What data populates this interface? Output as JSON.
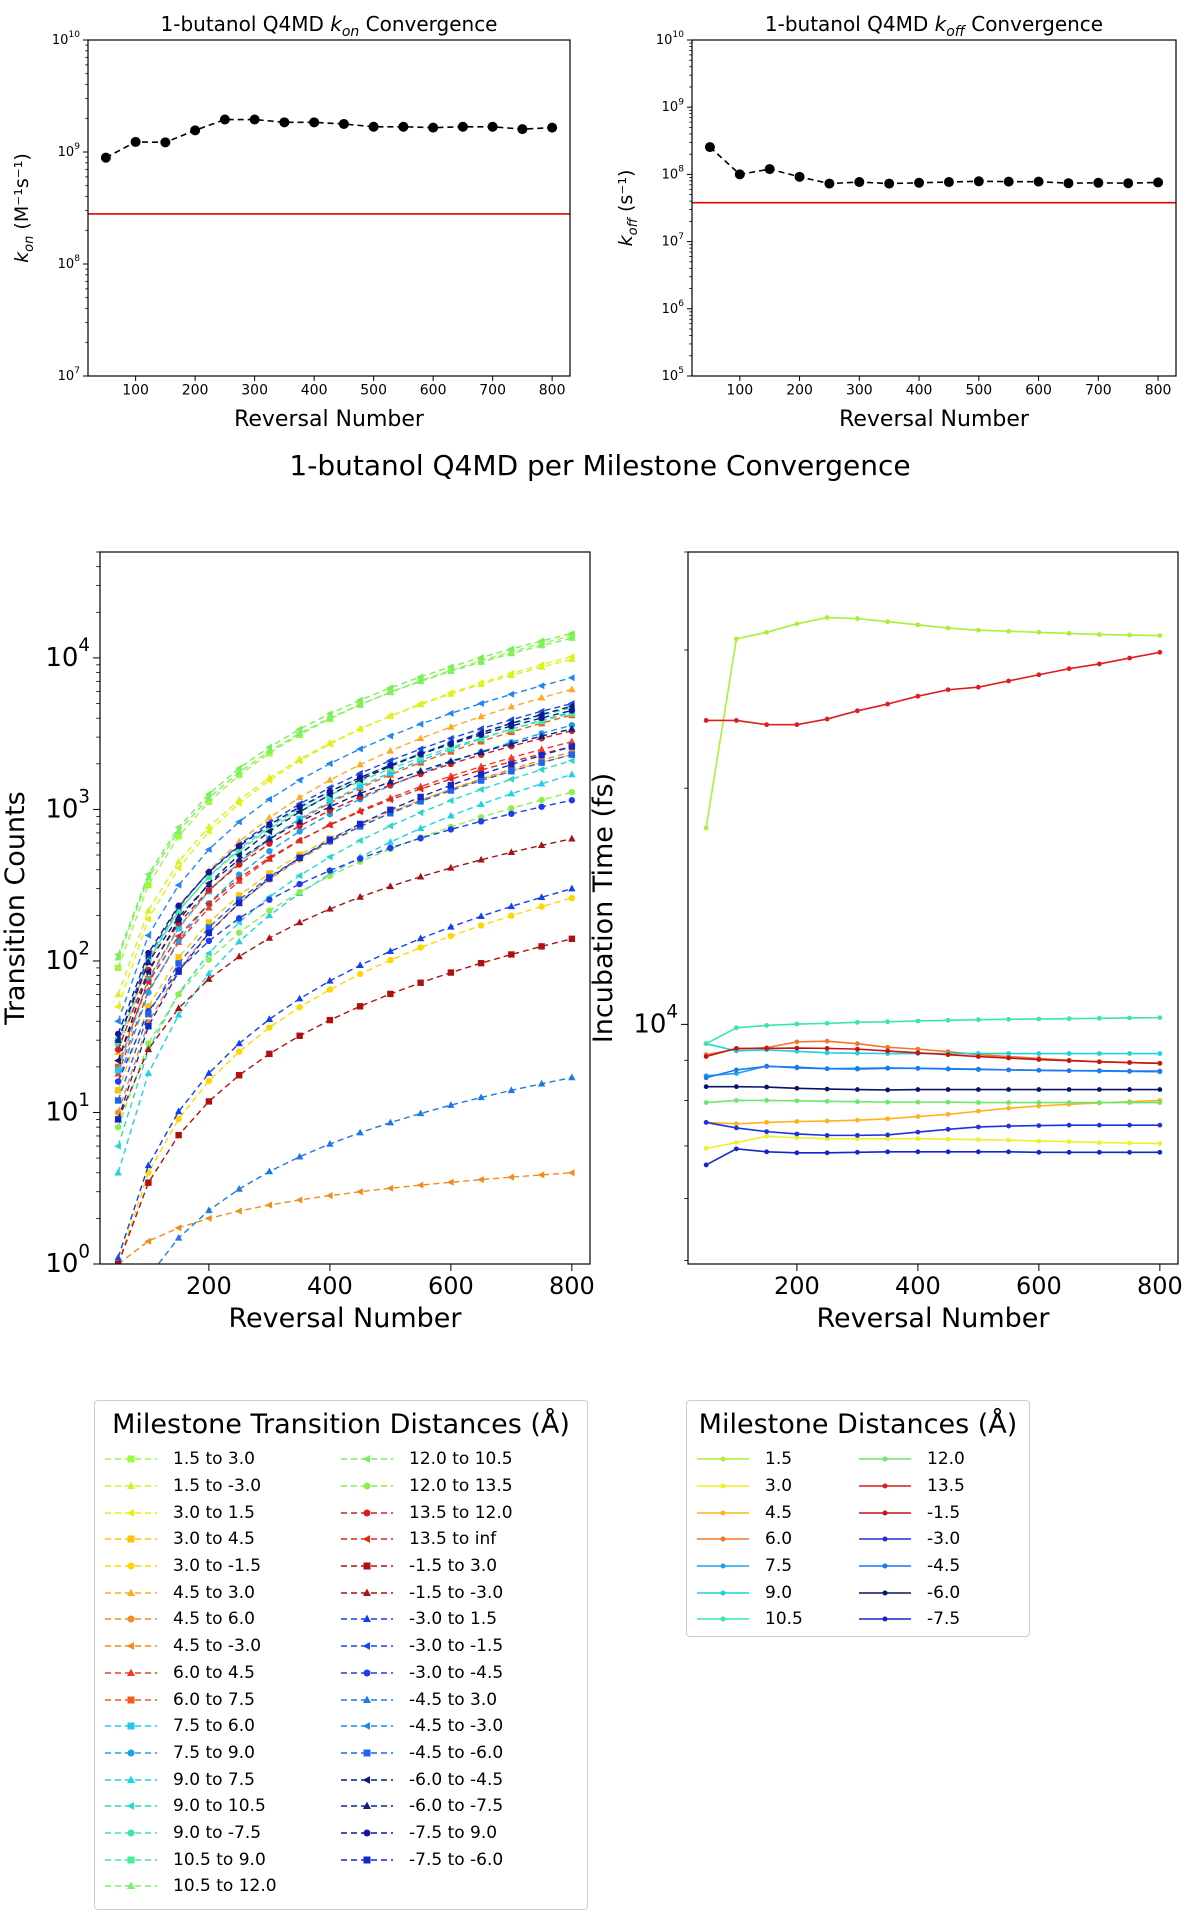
{
  "top_panels": [
    {
      "title_prefix": "1-butanol Q4MD ",
      "title_sym": "k",
      "title_sub": "on",
      "title_suffix": " Convergence",
      "ylabel_sym": "k",
      "ylabel_sub": "on",
      "ylabel_unit": " (M⁻¹s⁻¹)",
      "xlabel": "Reversal Number"
    },
    {
      "title_prefix": "1-butanol Q4MD ",
      "title_sym": "k",
      "title_sub": "off",
      "title_suffix": " Convergence",
      "ylabel_sym": "k",
      "ylabel_sub": "off",
      "ylabel_unit": " (s⁻¹)",
      "xlabel": "Reversal Number"
    }
  ],
  "middle_title": "1-butanol Q4MD per Milestone Convergence",
  "legend_transitions_title": "Milestone Transition Distances (Å)",
  "legend_milestones_title": "Milestone Distances (Å)",
  "chart_data": [
    {
      "type": "line",
      "title": "1-butanol Q4MD k_on Convergence",
      "xlabel": "Reversal Number",
      "ylabel": "k_on (M^-1 s^-1)",
      "yscale": "log",
      "xlim": [
        20,
        830
      ],
      "ylim": [
        10000000,
        10000000000
      ],
      "xticks": [
        100,
        200,
        300,
        400,
        500,
        600,
        700,
        800
      ],
      "yticks": [
        10000000,
        100000000,
        1000000000,
        10000000000
      ],
      "ytick_labels": [
        "10^7",
        "10^8",
        "10^9",
        "10^10"
      ],
      "grid": false,
      "x": [
        50,
        100,
        150,
        200,
        250,
        300,
        350,
        400,
        450,
        500,
        550,
        600,
        650,
        700,
        750,
        800
      ],
      "series": [
        {
          "values": [
            890000000,
            1230000000,
            1220000000,
            1560000000,
            1950000000,
            1950000000,
            1840000000,
            1840000000,
            1780000000,
            1680000000,
            1680000000,
            1650000000,
            1680000000,
            1680000000,
            1600000000,
            1650000000
          ],
          "color": "#000000",
          "style": "dashed",
          "marker": "circle"
        }
      ],
      "reference_line": {
        "value": 280000000,
        "color": "#e00000"
      }
    },
    {
      "type": "line",
      "title": "1-butanol Q4MD k_off Convergence",
      "xlabel": "Reversal Number",
      "ylabel": "k_off (s^-1)",
      "yscale": "log",
      "xlim": [
        20,
        830
      ],
      "ylim": [
        100000,
        10000000000
      ],
      "xticks": [
        100,
        200,
        300,
        400,
        500,
        600,
        700,
        800
      ],
      "yticks": [
        100000,
        1000000,
        10000000,
        100000000,
        1000000000,
        10000000000
      ],
      "ytick_labels": [
        "10^5",
        "10^6",
        "10^7",
        "10^8",
        "10^9",
        "10^10"
      ],
      "grid": false,
      "x": [
        50,
        100,
        150,
        200,
        250,
        300,
        350,
        400,
        450,
        500,
        550,
        600,
        650,
        700,
        750,
        800
      ],
      "series": [
        {
          "values": [
            255000000,
            100000000,
            120000000,
            92000000,
            73000000,
            77000000,
            73000000,
            75000000,
            77000000,
            79000000,
            78000000,
            78000000,
            74000000,
            75000000,
            74000000,
            76000000
          ],
          "color": "#000000",
          "style": "dashed",
          "marker": "circle"
        }
      ],
      "reference_line": {
        "value": 38000000,
        "color": "#e00000"
      }
    },
    {
      "type": "line",
      "xlabel": "Reversal Number",
      "ylabel": "Transition Counts",
      "yscale": "log",
      "xlim": [
        20,
        830
      ],
      "ylim": [
        1,
        50000
      ],
      "xticks": [
        200,
        400,
        600,
        800
      ],
      "yticks": [
        1,
        10,
        100,
        1000,
        10000
      ],
      "ytick_labels": [
        "10^0",
        "10^1",
        "10^2",
        "10^3",
        "10^4"
      ],
      "grid": false,
      "legend": "below",
      "x": [
        50,
        100,
        150,
        200,
        250,
        300,
        350,
        400,
        450,
        500,
        550,
        600,
        650,
        700,
        750,
        800
      ],
      "series": [
        {
          "name": "1.5 to 3.0",
          "color": "#9efa3c",
          "marker": "square",
          "end": 14000,
          "start": 90
        },
        {
          "name": "1.5 to -3.0",
          "color": "#ccf52e",
          "marker": "triangle",
          "end": 9800,
          "start": 60
        },
        {
          "name": "3.0 to 1.5",
          "color": "#e6ef0f",
          "marker": "triangle-left",
          "end": 10200,
          "start": 50
        },
        {
          "name": "3.0 to 4.5",
          "color": "#ffc20a",
          "marker": "square",
          "end": 2300,
          "start": 14
        },
        {
          "name": "3.0 to -1.5",
          "color": "#ffd700",
          "marker": "circle",
          "end": 260,
          "start": 1
        },
        {
          "name": "4.5 to 3.0",
          "color": "#ffaa22",
          "marker": "triangle",
          "end": 6200,
          "start": 25
        },
        {
          "name": "4.5 to 6.0",
          "color": "#f58a1f",
          "marker": "circle",
          "end": 2400,
          "start": 10
        },
        {
          "name": "4.5 to -3.0",
          "color": "#f08c1a",
          "marker": "triangle-left",
          "end": 4,
          "start": 1
        },
        {
          "name": "6.0 to 4.5",
          "color": "#f03a2b",
          "marker": "triangle",
          "end": 2800,
          "start": 18
        },
        {
          "name": "6.0 to 7.5",
          "color": "#f05a1a",
          "marker": "square",
          "end": 4200,
          "start": 20
        },
        {
          "name": "7.5 to 6.0",
          "color": "#22c8f0",
          "marker": "square",
          "end": 4400,
          "start": 19
        },
        {
          "name": "7.5 to 9.0",
          "color": "#1aa0f0",
          "marker": "circle",
          "end": 3600,
          "start": 16
        },
        {
          "name": "9.0 to 7.5",
          "color": "#1ed2e6",
          "marker": "triangle",
          "end": 1700,
          "start": 4
        },
        {
          "name": "9.0 to 10.5",
          "color": "#29d9c8",
          "marker": "triangle-left",
          "end": 2100,
          "start": 6
        },
        {
          "name": "9.0 to -7.5",
          "color": "#38e8a4",
          "marker": "circle",
          "end": 4700,
          "start": 28
        },
        {
          "name": "10.5 to 9.0",
          "color": "#48ec96",
          "marker": "square",
          "end": 4300,
          "start": 30
        },
        {
          "name": "10.5 to 12.0",
          "color": "#7af06a",
          "marker": "triangle",
          "end": 13500,
          "start": 105
        },
        {
          "name": "12.0 to 10.5",
          "color": "#78f05a",
          "marker": "triangle-left",
          "end": 14500,
          "start": 110
        },
        {
          "name": "12.0 to 13.5",
          "color": "#8cf04a",
          "marker": "circle",
          "end": 1300,
          "start": 8
        },
        {
          "name": "13.5 to 12.0",
          "color": "#d61c1c",
          "marker": "circle",
          "end": 3300,
          "start": 26
        },
        {
          "name": "13.5 to inf",
          "color": "#e0251c",
          "marker": "triangle-left",
          "end": 2600,
          "start": 22
        },
        {
          "name": "-1.5 to 3.0",
          "color": "#b01010",
          "marker": "square",
          "end": 140,
          "start": 1
        },
        {
          "name": "-1.5 to -3.0",
          "color": "#a31414",
          "marker": "triangle",
          "end": 640,
          "start": 9
        },
        {
          "name": "-3.0 to 1.5",
          "color": "#1440f0",
          "marker": "triangle",
          "end": 300,
          "start": 1.1
        },
        {
          "name": "-3.0 to -1.5",
          "color": "#1a46e6",
          "marker": "triangle-left",
          "end": 5000,
          "start": 30
        },
        {
          "name": "-3.0 to -4.5",
          "color": "#1e3cf0",
          "marker": "circle",
          "end": 1150,
          "start": 16
        },
        {
          "name": "-4.5 to 3.0",
          "color": "#1e78e6",
          "marker": "triangle",
          "end": 17,
          "start": 0.3
        },
        {
          "name": "-4.5 to -3.0",
          "color": "#1e88f0",
          "marker": "triangle-left",
          "end": 7400,
          "start": 40
        },
        {
          "name": "-4.5 to -6.0",
          "color": "#1e64f0",
          "marker": "square",
          "end": 2300,
          "start": 12
        },
        {
          "name": "-6.0 to -4.5",
          "color": "#0a1a78",
          "marker": "triangle-left",
          "end": 4800,
          "start": 22
        },
        {
          "name": "-6.0 to -7.5",
          "color": "#10208a",
          "marker": "triangle",
          "end": 3400,
          "start": 30
        },
        {
          "name": "-7.5 to 9.0",
          "color": "#1414a0",
          "marker": "circle",
          "end": 4500,
          "start": 33
        },
        {
          "name": "-7.5 to -6.0",
          "color": "#1428c8",
          "marker": "square",
          "end": 2600,
          "start": 9
        }
      ]
    },
    {
      "type": "line",
      "xlabel": "Reversal Number",
      "ylabel": "Incubation Time (fs)",
      "yscale": "log",
      "xlim": [
        20,
        830
      ],
      "ylim": [
        4950,
        40000
      ],
      "xticks": [
        200,
        400,
        600,
        800
      ],
      "yticks": [
        10000
      ],
      "ytick_labels": [
        "10^4"
      ],
      "grid": false,
      "legend": "below",
      "x": [
        50,
        100,
        150,
        200,
        250,
        300,
        350,
        400,
        450,
        500,
        550,
        600,
        650,
        700,
        750,
        800
      ],
      "series": [
        {
          "name": "1.5",
          "color": "#a8f03a",
          "values": [
            17800,
            31000,
            31600,
            32400,
            33000,
            32900,
            32600,
            32300,
            32000,
            31800,
            31700,
            31600,
            31500,
            31400,
            31350,
            31300
          ]
        },
        {
          "name": "3.0",
          "color": "#f0f02a",
          "values": [
            6950,
            7070,
            7200,
            7170,
            7150,
            7150,
            7150,
            7150,
            7140,
            7130,
            7120,
            7100,
            7090,
            7070,
            7060,
            7050
          ]
        },
        {
          "name": "4.5",
          "color": "#ffb21e",
          "values": [
            7500,
            7470,
            7500,
            7520,
            7530,
            7550,
            7580,
            7630,
            7680,
            7750,
            7820,
            7870,
            7910,
            7940,
            7970,
            8000
          ]
        },
        {
          "name": "6.0",
          "color": "#f07828",
          "values": [
            9150,
            9300,
            9340,
            9500,
            9520,
            9450,
            9350,
            9300,
            9230,
            9150,
            9100,
            9050,
            9000,
            8960,
            8940,
            8920
          ]
        },
        {
          "name": "7.5",
          "color": "#1ea0f0",
          "values": [
            8600,
            8660,
            8850,
            8800,
            8780,
            8790,
            8800,
            8790,
            8780,
            8770,
            8750,
            8740,
            8730,
            8720,
            8710,
            8700
          ]
        },
        {
          "name": "9.0",
          "color": "#1ed2dc",
          "values": [
            9450,
            9250,
            9280,
            9240,
            9200,
            9190,
            9180,
            9180,
            9180,
            9180,
            9180,
            9180,
            9180,
            9180,
            9180,
            9180
          ]
        },
        {
          "name": "10.5",
          "color": "#3ce8a0",
          "values": [
            9450,
            9900,
            9970,
            10010,
            10030,
            10060,
            10080,
            10100,
            10120,
            10140,
            10150,
            10160,
            10170,
            10180,
            10190,
            10200
          ]
        },
        {
          "name": "12.0",
          "color": "#6ee66e",
          "values": [
            7950,
            8000,
            8000,
            7990,
            7980,
            7970,
            7960,
            7960,
            7960,
            7950,
            7950,
            7950,
            7950,
            7950,
            7950,
            7950
          ]
        },
        {
          "name": "13.5",
          "color": "#dc1e1e",
          "values": [
            24400,
            24400,
            24100,
            24100,
            24500,
            25100,
            25600,
            26200,
            26700,
            26900,
            27400,
            27900,
            28400,
            28800,
            29300,
            29800
          ]
        },
        {
          "name": "-1.5",
          "color": "#c81414",
          "values": [
            9100,
            9320,
            9320,
            9330,
            9320,
            9300,
            9250,
            9200,
            9150,
            9100,
            9060,
            9020,
            8990,
            8960,
            8940,
            8920
          ]
        },
        {
          "name": "-3.0",
          "color": "#1e32dc",
          "values": [
            7500,
            7380,
            7300,
            7250,
            7220,
            7220,
            7230,
            7290,
            7350,
            7400,
            7420,
            7430,
            7440,
            7440,
            7440,
            7440
          ]
        },
        {
          "name": "-4.5",
          "color": "#1e78f0",
          "values": [
            8550,
            8750,
            8840,
            8820,
            8780,
            8770,
            8790,
            8790,
            8770,
            8760,
            8750,
            8740,
            8730,
            8730,
            8720,
            8720
          ]
        },
        {
          "name": "-6.0",
          "color": "#0a1464",
          "values": [
            8330,
            8330,
            8320,
            8290,
            8270,
            8260,
            8250,
            8260,
            8260,
            8260,
            8260,
            8260,
            8260,
            8260,
            8260,
            8260
          ]
        },
        {
          "name": "-7.5",
          "color": "#1426c8",
          "values": [
            6620,
            6940,
            6880,
            6860,
            6860,
            6870,
            6880,
            6880,
            6880,
            6880,
            6880,
            6870,
            6870,
            6870,
            6870,
            6870
          ]
        }
      ]
    }
  ]
}
